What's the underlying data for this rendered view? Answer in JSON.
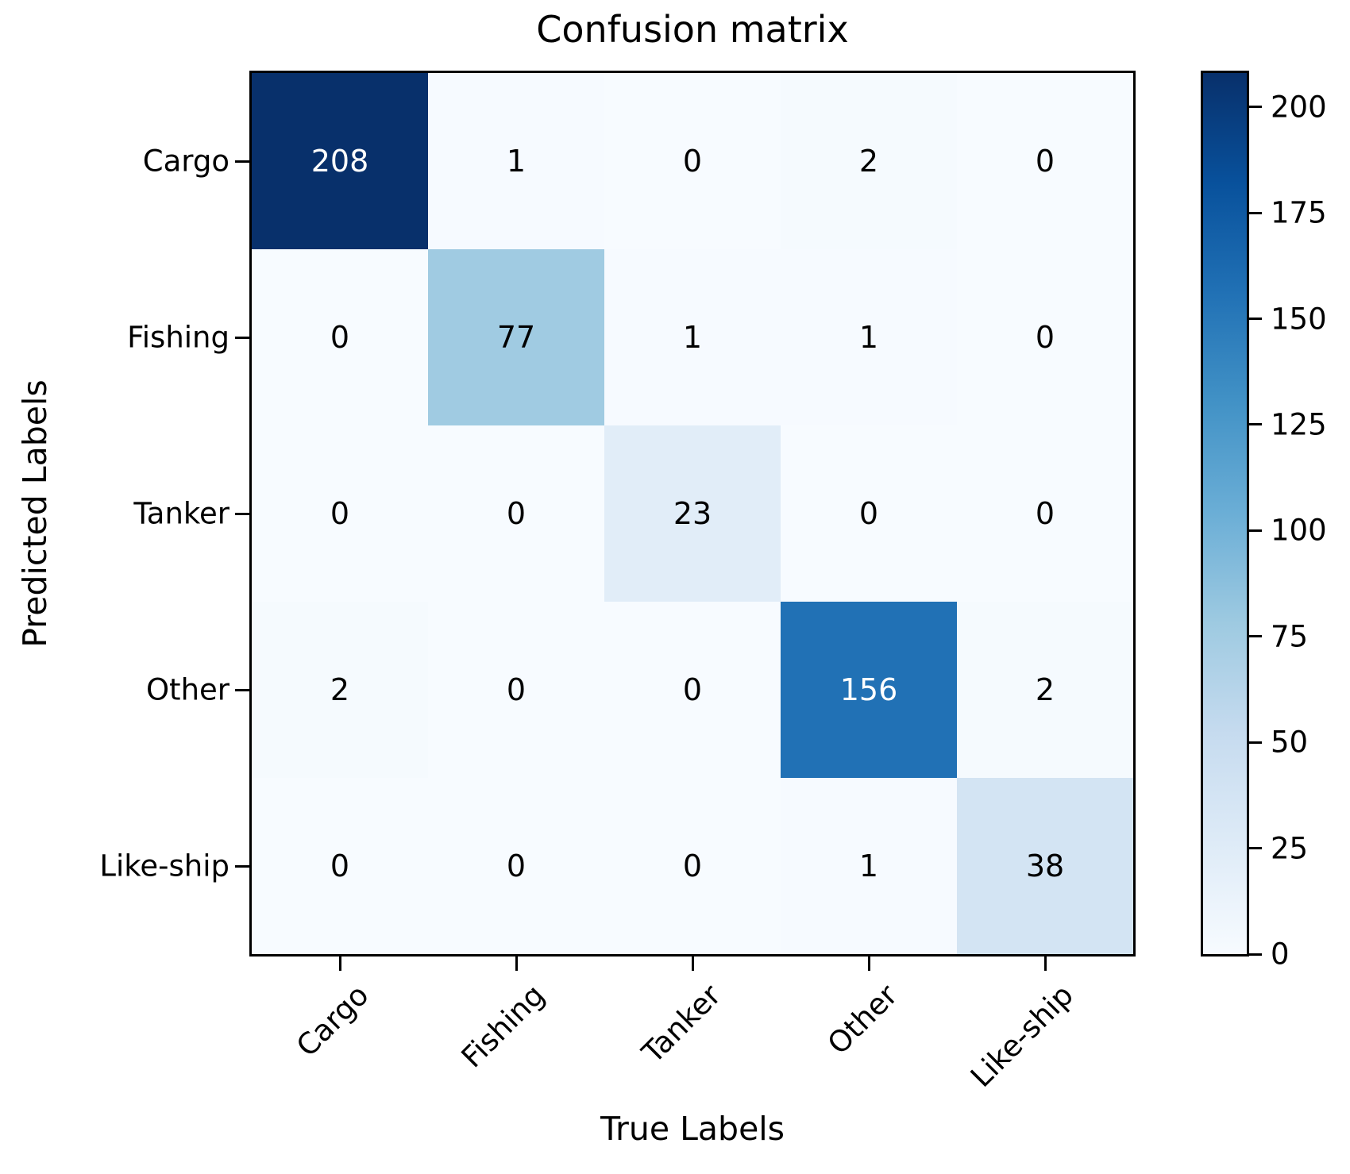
{
  "chart_data": {
    "type": "heatmap",
    "title": "Confusion matrix",
    "xlabel": "True Labels",
    "ylabel": "Predicted Labels",
    "x_categories": [
      "Cargo",
      "Fishing",
      "Tanker",
      "Other",
      "Like-ship"
    ],
    "y_categories": [
      "Cargo",
      "Fishing",
      "Tanker",
      "Other",
      "Like-ship"
    ],
    "rows": [
      [
        208,
        1,
        0,
        2,
        0
      ],
      [
        0,
        77,
        1,
        1,
        0
      ],
      [
        0,
        0,
        23,
        0,
        0
      ],
      [
        2,
        0,
        0,
        156,
        2
      ],
      [
        0,
        0,
        0,
        1,
        38
      ]
    ],
    "vmin": 0,
    "vmax": 208,
    "colorbar_ticks": [
      0,
      25,
      50,
      75,
      100,
      125,
      150,
      175,
      200
    ],
    "colormap": {
      "name": "Blues",
      "stops": [
        "#f7fbff",
        "#deebf7",
        "#c6dbef",
        "#9ecae1",
        "#6baed6",
        "#4292c6",
        "#2171b5",
        "#08519c",
        "#08306b"
      ]
    },
    "cell_text_light": "#ffffff",
    "cell_text_dark": "#000000",
    "axis_color": "#000000",
    "legend_position": "right-colorbar",
    "grid": false
  }
}
